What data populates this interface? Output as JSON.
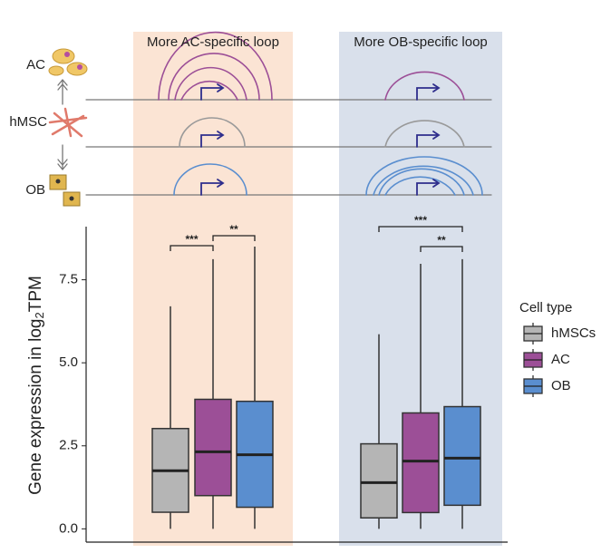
{
  "chart_data": {
    "type": "box",
    "categories": [
      "More AC-specific loop",
      "More OB-specific loop"
    ],
    "cell_labels": [
      "AC",
      "hMSC",
      "OB"
    ],
    "y_label": {
      "main": "Gene expression in log",
      "sub": "2",
      "end": "TPM"
    },
    "legend_title": "Cell type",
    "ylim": [
      -0.4,
      9.1
    ],
    "yticks": [
      {
        "value": 0,
        "label": "0.0"
      },
      2.5,
      {
        "value": 5,
        "label": "5.0"
      },
      7.5
    ],
    "series": [
      {
        "name": "hMSCs",
        "color": "#b5b5b5",
        "low": [
          0,
          0
        ],
        "q1": [
          0.5,
          0.33
        ],
        "median": [
          1.75,
          1.39
        ],
        "q3": [
          3.02,
          2.56
        ],
        "high": [
          6.7,
          5.86
        ]
      },
      {
        "name": "AC",
        "color": "#9c4f97",
        "low": [
          0,
          0
        ],
        "q1": [
          1.0,
          0.49
        ],
        "median": [
          2.32,
          2.04
        ],
        "q3": [
          3.9,
          3.49
        ],
        "high": [
          8.12,
          7.98
        ]
      },
      {
        "name": "OB",
        "color": "#5a8ecf",
        "low": [
          0,
          0
        ],
        "q1": [
          0.65,
          0.71
        ],
        "median": [
          2.23,
          2.13
        ],
        "q3": [
          3.84,
          3.68
        ],
        "high": [
          8.5,
          8.12
        ]
      }
    ],
    "annotations": [
      "***",
      "**",
      "***",
      "**"
    ]
  }
}
